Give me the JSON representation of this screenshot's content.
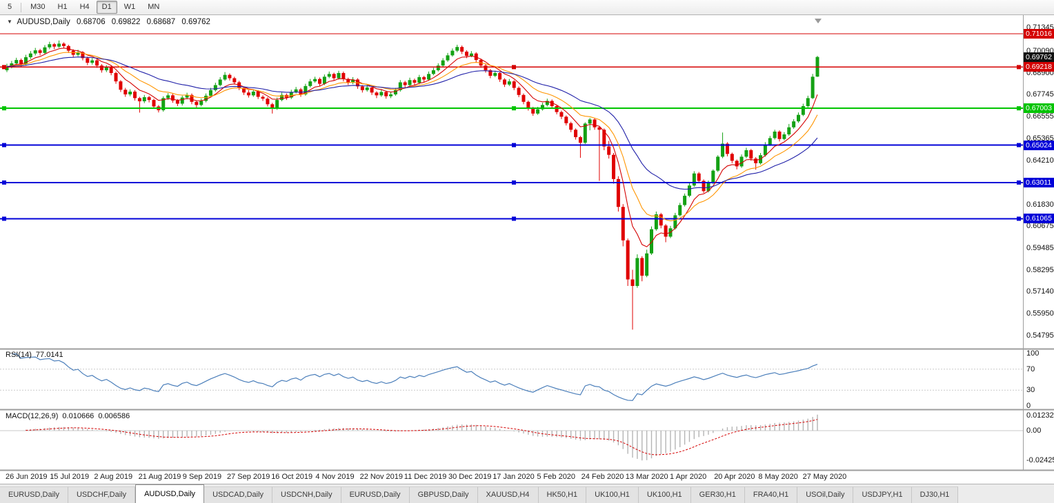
{
  "toolbar": {
    "timeframes": [
      {
        "label": "5",
        "active": false
      },
      {
        "label": "M30",
        "active": false
      },
      {
        "label": "H1",
        "active": false
      },
      {
        "label": "H4",
        "active": false
      },
      {
        "label": "D1",
        "active": true
      },
      {
        "label": "W1",
        "active": false
      },
      {
        "label": "MN",
        "active": false
      }
    ]
  },
  "legend": {
    "marker": "▼",
    "title": "AUDUSD,Daily",
    "open": "0.68706",
    "high": "0.69822",
    "low": "0.68687",
    "close": "0.69762"
  },
  "tabs": [
    {
      "label": "EURUSD,Daily",
      "active": false
    },
    {
      "label": "USDCHF,Daily",
      "active": false
    },
    {
      "label": "AUDUSD,Daily",
      "active": true
    },
    {
      "label": "USDCAD,Daily",
      "active": false
    },
    {
      "label": "USDCNH,Daily",
      "active": false
    },
    {
      "label": "EURUSD,Daily",
      "active": false
    },
    {
      "label": "GBPUSD,Daily",
      "active": false
    },
    {
      "label": "XAUUSD,H4",
      "active": false
    },
    {
      "label": "HK50,H1",
      "active": false
    },
    {
      "label": "UK100,H1",
      "active": false
    },
    {
      "label": "UK100,H1",
      "active": false
    },
    {
      "label": "GER30,H1",
      "active": false
    },
    {
      "label": "FRA40,H1",
      "active": false
    },
    {
      "label": "USOil,Daily",
      "active": false
    },
    {
      "label": "USDJPY,H1",
      "active": false
    },
    {
      "label": "DJ30,H1",
      "active": false
    }
  ],
  "chart_data": {
    "type": "candlestick",
    "symbol": "AUDUSD",
    "timeframe": "Daily",
    "ohlc_current": {
      "open": 0.68706,
      "high": 0.69822,
      "low": 0.68687,
      "close": 0.69762
    },
    "colors": {
      "up": "#14A114",
      "down": "#E00000",
      "background": "#FFFFFF"
    },
    "y_axis": {
      "range": [
        0.543,
        0.719
      ],
      "ticks": [
        "0.71345",
        "0.70090",
        "0.68900",
        "0.67745",
        "0.66555",
        "0.65365",
        "0.64210",
        "0.63020",
        "0.61830",
        "0.60675",
        "0.59485",
        "0.58295",
        "0.57140",
        "0.55950",
        "0.54795"
      ]
    },
    "x_axis": {
      "labels": [
        "26 Jun 2019",
        "15 Jul 2019",
        "2 Aug 2019",
        "21 Aug 2019",
        "9 Sep 2019",
        "27 Sep 2019",
        "16 Oct 2019",
        "4 Nov 2019",
        "22 Nov 2019",
        "11 Dec 2019",
        "30 Dec 2019",
        "17 Jan 2020",
        "5 Feb 2020",
        "24 Feb 2020",
        "13 Mar 2020",
        "1 Apr 2020",
        "20 Apr 2020",
        "8 May 2020",
        "27 May 2020"
      ]
    },
    "current_price": {
      "price": 0.69762,
      "label": "0.69762",
      "color": "#111111"
    },
    "hlines": [
      {
        "price": 0.71016,
        "label": "0.71016",
        "color": "#D40000",
        "width": 1.2,
        "handles": false
      },
      {
        "price": 0.69218,
        "label": "0.69218",
        "color": "#D40000",
        "width": 1.6,
        "handles": true
      },
      {
        "price": 0.67003,
        "label": "0.67003",
        "color": "#00C400",
        "width": 2,
        "handles": true
      },
      {
        "price": 0.65024,
        "label": "0.65024",
        "color": "#0000D8",
        "width": 2,
        "handles": true
      },
      {
        "price": 0.63011,
        "label": "0.63011",
        "color": "#0000D8",
        "width": 2,
        "handles": true
      },
      {
        "price": 0.61065,
        "label": "0.61065",
        "color": "#0000D8",
        "width": 2,
        "handles": true
      }
    ],
    "overlays": [
      {
        "type": "ema",
        "period": 7,
        "color": "#D40000"
      },
      {
        "type": "ema",
        "period": 14,
        "color": "#FF9500"
      },
      {
        "type": "ema",
        "period": 30,
        "color": "#1F1FA8"
      }
    ],
    "indicators": {
      "rsi": {
        "label": "RSI(14)",
        "value": "77.0141",
        "period": 14,
        "axis": [
          "100",
          "70",
          "30",
          "0"
        ],
        "axis_values": [
          100,
          70,
          30,
          0
        ],
        "levels": [
          70,
          30
        ],
        "color": "#4A7EBA",
        "range": [
          0,
          100
        ]
      },
      "macd": {
        "label": "MACD(12,26,9)",
        "value_main": "0.010666",
        "value_signal": "0.006586",
        "fast": 12,
        "slow": 26,
        "signal": 9,
        "axis": [
          "0.012325",
          "0.00",
          "-0.02425"
        ],
        "axis_values": [
          0.012325,
          0,
          -0.02425
        ],
        "hist_color": "#B4B4B4",
        "signal_color": "#D40000"
      }
    },
    "candles": [
      [
        0.6905,
        0.694,
        0.6895,
        0.6925
      ],
      [
        0.6925,
        0.6955,
        0.6915,
        0.6942
      ],
      [
        0.6942,
        0.6972,
        0.6932,
        0.696
      ],
      [
        0.696,
        0.6968,
        0.6925,
        0.6938
      ],
      [
        0.6938,
        0.6988,
        0.693,
        0.6975
      ],
      [
        0.6975,
        0.7008,
        0.6965,
        0.6995
      ],
      [
        0.6995,
        0.7025,
        0.6985,
        0.7012
      ],
      [
        0.7012,
        0.702,
        0.6985,
        0.6998
      ],
      [
        0.6998,
        0.704,
        0.699,
        0.7028
      ],
      [
        0.7028,
        0.7058,
        0.7018,
        0.7045
      ],
      [
        0.7045,
        0.7052,
        0.7018,
        0.7032
      ],
      [
        0.7032,
        0.7065,
        0.7025,
        0.7048
      ],
      [
        0.7048,
        0.7055,
        0.7022,
        0.7035
      ],
      [
        0.7035,
        0.7042,
        0.6998,
        0.701
      ],
      [
        0.701,
        0.7018,
        0.6975,
        0.6988
      ],
      [
        0.6988,
        0.7015,
        0.698,
        0.7002
      ],
      [
        0.7002,
        0.7008,
        0.6958,
        0.697
      ],
      [
        0.697,
        0.6978,
        0.6932,
        0.6945
      ],
      [
        0.6945,
        0.697,
        0.6935,
        0.6958
      ],
      [
        0.6958,
        0.6965,
        0.6918,
        0.693
      ],
      [
        0.693,
        0.6938,
        0.6892,
        0.6905
      ],
      [
        0.6905,
        0.6932,
        0.6895,
        0.692
      ],
      [
        0.692,
        0.6928,
        0.6878,
        0.689
      ],
      [
        0.689,
        0.6898,
        0.6832,
        0.6845
      ],
      [
        0.6845,
        0.6852,
        0.6788,
        0.68
      ],
      [
        0.68,
        0.681,
        0.6762,
        0.6775
      ],
      [
        0.6775,
        0.6802,
        0.6765,
        0.679
      ],
      [
        0.679,
        0.6798,
        0.6742,
        0.6755
      ],
      [
        0.6755,
        0.6762,
        0.6677,
        0.6738
      ],
      [
        0.6738,
        0.6772,
        0.6728,
        0.676
      ],
      [
        0.676,
        0.6768,
        0.6732,
        0.6745
      ],
      [
        0.6745,
        0.6752,
        0.6698,
        0.671
      ],
      [
        0.671,
        0.6718,
        0.6678,
        0.669
      ],
      [
        0.669,
        0.6765,
        0.6682,
        0.6755
      ],
      [
        0.6755,
        0.6782,
        0.6745,
        0.677
      ],
      [
        0.677,
        0.6778,
        0.673,
        0.6742
      ],
      [
        0.6742,
        0.675,
        0.6712,
        0.6725
      ],
      [
        0.6725,
        0.6768,
        0.6715,
        0.6758
      ],
      [
        0.6758,
        0.6784,
        0.6748,
        0.6772
      ],
      [
        0.6772,
        0.678,
        0.6722,
        0.6735
      ],
      [
        0.6735,
        0.6742,
        0.6705,
        0.6718
      ],
      [
        0.6718,
        0.6752,
        0.671,
        0.674
      ],
      [
        0.674,
        0.678,
        0.6732,
        0.6768
      ],
      [
        0.6768,
        0.681,
        0.676,
        0.6798
      ],
      [
        0.6798,
        0.6838,
        0.679,
        0.6825
      ],
      [
        0.6825,
        0.6868,
        0.6818,
        0.6855
      ],
      [
        0.6855,
        0.6895,
        0.6848,
        0.688
      ],
      [
        0.688,
        0.6888,
        0.685,
        0.6862
      ],
      [
        0.6862,
        0.687,
        0.6828,
        0.684
      ],
      [
        0.684,
        0.6848,
        0.6798,
        0.681
      ],
      [
        0.681,
        0.6818,
        0.6772,
        0.6785
      ],
      [
        0.6785,
        0.6798,
        0.6758,
        0.677
      ],
      [
        0.677,
        0.6802,
        0.6762,
        0.679
      ],
      [
        0.679,
        0.6798,
        0.675,
        0.6762
      ],
      [
        0.6762,
        0.677,
        0.674,
        0.6752
      ],
      [
        0.6752,
        0.676,
        0.671,
        0.6722
      ],
      [
        0.6722,
        0.673,
        0.6672,
        0.67
      ],
      [
        0.67,
        0.6758,
        0.6692,
        0.6745
      ],
      [
        0.6745,
        0.6785,
        0.6738,
        0.6772
      ],
      [
        0.6772,
        0.678,
        0.6745,
        0.6758
      ],
      [
        0.6758,
        0.68,
        0.675,
        0.6788
      ],
      [
        0.6788,
        0.6815,
        0.678,
        0.6802
      ],
      [
        0.6802,
        0.681,
        0.6762,
        0.6775
      ],
      [
        0.6775,
        0.6832,
        0.6768,
        0.682
      ],
      [
        0.682,
        0.6858,
        0.6812,
        0.6845
      ],
      [
        0.6845,
        0.687,
        0.6838,
        0.6858
      ],
      [
        0.6858,
        0.6866,
        0.682,
        0.6832
      ],
      [
        0.6832,
        0.6882,
        0.6825,
        0.687
      ],
      [
        0.687,
        0.6898,
        0.6862,
        0.6885
      ],
      [
        0.6885,
        0.6892,
        0.685,
        0.6862
      ],
      [
        0.6862,
        0.6902,
        0.6855,
        0.689
      ],
      [
        0.689,
        0.6898,
        0.6845,
        0.6858
      ],
      [
        0.6858,
        0.6865,
        0.6825,
        0.6838
      ],
      [
        0.6838,
        0.6868,
        0.683,
        0.6855
      ],
      [
        0.6855,
        0.6862,
        0.6805,
        0.6818
      ],
      [
        0.6818,
        0.6825,
        0.6785,
        0.6798
      ],
      [
        0.6798,
        0.6825,
        0.679,
        0.6812
      ],
      [
        0.6812,
        0.682,
        0.6772,
        0.6785
      ],
      [
        0.6785,
        0.6792,
        0.6755,
        0.677
      ],
      [
        0.677,
        0.68,
        0.6762,
        0.6788
      ],
      [
        0.6788,
        0.6795,
        0.6752,
        0.6765
      ],
      [
        0.6765,
        0.6788,
        0.6755,
        0.6775
      ],
      [
        0.6775,
        0.681,
        0.6768,
        0.6798
      ],
      [
        0.6798,
        0.6852,
        0.679,
        0.684
      ],
      [
        0.684,
        0.6848,
        0.6812,
        0.6825
      ],
      [
        0.6825,
        0.6865,
        0.6818,
        0.6852
      ],
      [
        0.6852,
        0.686,
        0.6825,
        0.6838
      ],
      [
        0.6838,
        0.688,
        0.683,
        0.6868
      ],
      [
        0.6868,
        0.6875,
        0.6842,
        0.6855
      ],
      [
        0.6855,
        0.6898,
        0.6848,
        0.6885
      ],
      [
        0.6885,
        0.6918,
        0.6878,
        0.6905
      ],
      [
        0.6905,
        0.6942,
        0.6898,
        0.693
      ],
      [
        0.693,
        0.697,
        0.6922,
        0.6958
      ],
      [
        0.6958,
        0.6998,
        0.695,
        0.6985
      ],
      [
        0.6985,
        0.7022,
        0.6978,
        0.701
      ],
      [
        0.701,
        0.7042,
        0.7002,
        0.703
      ],
      [
        0.703,
        0.7038,
        0.6992,
        0.7005
      ],
      [
        0.7005,
        0.7012,
        0.697,
        0.6982
      ],
      [
        0.6982,
        0.7008,
        0.6975,
        0.6995
      ],
      [
        0.6995,
        0.7002,
        0.6948,
        0.696
      ],
      [
        0.696,
        0.6968,
        0.6918,
        0.693
      ],
      [
        0.693,
        0.6938,
        0.6892,
        0.6905
      ],
      [
        0.6905,
        0.6912,
        0.6862,
        0.6875
      ],
      [
        0.6875,
        0.6902,
        0.6868,
        0.689
      ],
      [
        0.689,
        0.6898,
        0.6842,
        0.6855
      ],
      [
        0.6855,
        0.6862,
        0.6815,
        0.6828
      ],
      [
        0.6828,
        0.6858,
        0.682,
        0.6845
      ],
      [
        0.6845,
        0.6852,
        0.6798,
        0.681
      ],
      [
        0.681,
        0.6818,
        0.676,
        0.6772
      ],
      [
        0.6772,
        0.678,
        0.6722,
        0.6735
      ],
      [
        0.6735,
        0.6742,
        0.6688,
        0.67
      ],
      [
        0.67,
        0.6708,
        0.666,
        0.6672
      ],
      [
        0.6672,
        0.6708,
        0.6665,
        0.6695
      ],
      [
        0.6695,
        0.673,
        0.6688,
        0.6718
      ],
      [
        0.6718,
        0.6752,
        0.671,
        0.674
      ],
      [
        0.674,
        0.6748,
        0.67,
        0.6712
      ],
      [
        0.6712,
        0.672,
        0.6668,
        0.668
      ],
      [
        0.668,
        0.6688,
        0.6642,
        0.6655
      ],
      [
        0.6655,
        0.6662,
        0.6608,
        0.662
      ],
      [
        0.662,
        0.6628,
        0.6572,
        0.6585
      ],
      [
        0.6585,
        0.6592,
        0.6532,
        0.6545
      ],
      [
        0.6545,
        0.6552,
        0.6434,
        0.6515
      ],
      [
        0.6515,
        0.6625,
        0.6508,
        0.6618
      ],
      [
        0.6618,
        0.6648,
        0.6582,
        0.664
      ],
      [
        0.664,
        0.6648,
        0.6585,
        0.6598
      ],
      [
        0.6598,
        0.6605,
        0.631,
        0.6585
      ],
      [
        0.6585,
        0.6592,
        0.6475,
        0.6495
      ],
      [
        0.6495,
        0.6525,
        0.643,
        0.645
      ],
      [
        0.645,
        0.646,
        0.6295,
        0.632
      ],
      [
        0.632,
        0.6335,
        0.6145,
        0.617
      ],
      [
        0.617,
        0.6185,
        0.5958,
        0.599
      ],
      [
        0.599,
        0.6,
        0.5745,
        0.578
      ],
      [
        0.578,
        0.5832,
        0.551,
        0.5745
      ],
      [
        0.5745,
        0.5915,
        0.5735,
        0.5895
      ],
      [
        0.5895,
        0.5905,
        0.577,
        0.58
      ],
      [
        0.58,
        0.594,
        0.5792,
        0.592
      ],
      [
        0.592,
        0.6065,
        0.5912,
        0.605
      ],
      [
        0.605,
        0.6145,
        0.6042,
        0.613
      ],
      [
        0.613,
        0.6138,
        0.6055,
        0.607
      ],
      [
        0.607,
        0.6078,
        0.598,
        0.601
      ],
      [
        0.601,
        0.6068,
        0.6002,
        0.6055
      ],
      [
        0.6055,
        0.6138,
        0.6048,
        0.6125
      ],
      [
        0.6125,
        0.6192,
        0.6118,
        0.618
      ],
      [
        0.618,
        0.6242,
        0.6172,
        0.623
      ],
      [
        0.623,
        0.6298,
        0.6222,
        0.6285
      ],
      [
        0.6285,
        0.6362,
        0.6278,
        0.635
      ],
      [
        0.635,
        0.6358,
        0.6298,
        0.631
      ],
      [
        0.631,
        0.6318,
        0.6245,
        0.6255
      ],
      [
        0.6255,
        0.6312,
        0.6248,
        0.63
      ],
      [
        0.63,
        0.6372,
        0.6292,
        0.6365
      ],
      [
        0.6365,
        0.6448,
        0.6358,
        0.644
      ],
      [
        0.644,
        0.657,
        0.6432,
        0.651
      ],
      [
        0.651,
        0.6518,
        0.6442,
        0.6455
      ],
      [
        0.6455,
        0.6462,
        0.6405,
        0.6418
      ],
      [
        0.6418,
        0.6425,
        0.6372,
        0.6388
      ],
      [
        0.6388,
        0.6452,
        0.638,
        0.644
      ],
      [
        0.644,
        0.6488,
        0.6432,
        0.6475
      ],
      [
        0.6475,
        0.6482,
        0.6418,
        0.643
      ],
      [
        0.643,
        0.6438,
        0.637,
        0.6405
      ],
      [
        0.6405,
        0.646,
        0.6398,
        0.6448
      ],
      [
        0.6448,
        0.6518,
        0.644,
        0.6505
      ],
      [
        0.6505,
        0.6552,
        0.6498,
        0.654
      ],
      [
        0.654,
        0.6585,
        0.6532,
        0.6575
      ],
      [
        0.6575,
        0.6582,
        0.6522,
        0.6535
      ],
      [
        0.6535,
        0.6572,
        0.6528,
        0.656
      ],
      [
        0.656,
        0.6616,
        0.6552,
        0.6598
      ],
      [
        0.6598,
        0.6642,
        0.659,
        0.663
      ],
      [
        0.663,
        0.6678,
        0.6622,
        0.6665
      ],
      [
        0.6665,
        0.6725,
        0.6658,
        0.6712
      ],
      [
        0.6712,
        0.6768,
        0.6705,
        0.6755
      ],
      [
        0.6755,
        0.6885,
        0.675,
        0.687
      ],
      [
        0.68706,
        0.69822,
        0.68687,
        0.69762
      ]
    ]
  }
}
